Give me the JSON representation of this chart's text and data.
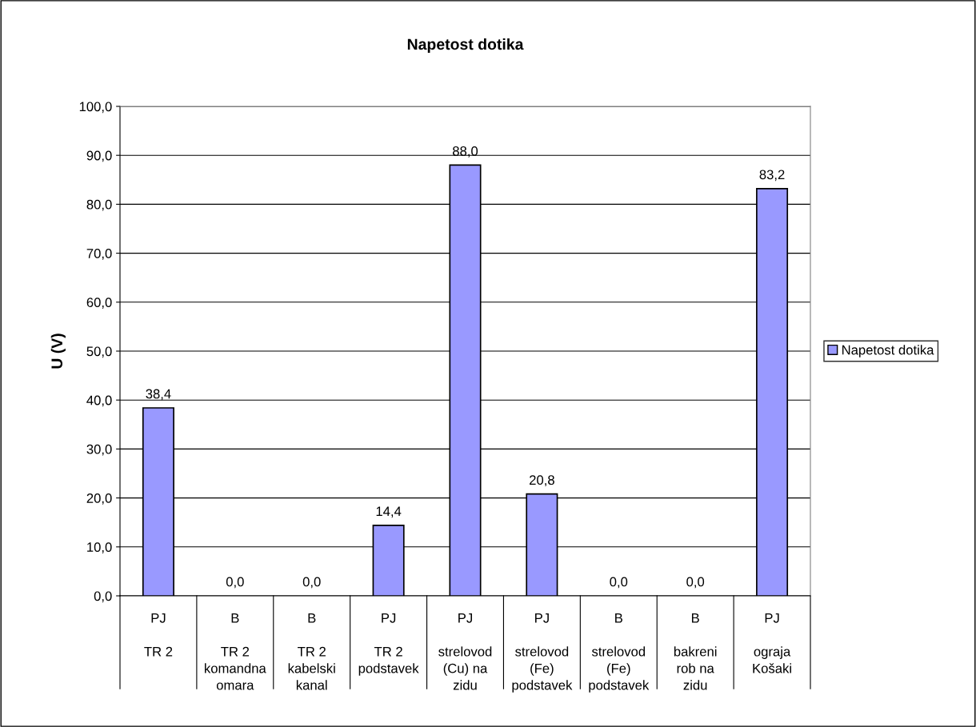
{
  "chart_data": {
    "type": "bar",
    "title": "Napetost dotika",
    "ylabel": "U (V)",
    "categories": [
      "PJ\n\nTR 2",
      "B\n\nTR 2\nkomandna\nomara",
      "B\n\nTR 2\nkabelski\nkanal",
      "PJ\n\nTR 2\npodstavek",
      "PJ\n\nstrelovod\n(Cu) na\nzidu",
      "PJ\n\nstrelovod\n(Fe)\npodstavek",
      "B\n\nstrelovod\n(Fe)\npodstavek",
      "B\n\nbakreni\nrob na\nzidu",
      "PJ\n\nograja\nKošaki"
    ],
    "series": [
      {
        "name": "Napetost dotika",
        "color": "#9999ff",
        "values": [
          38.4,
          0.0,
          0.0,
          14.4,
          88.0,
          20.8,
          0.0,
          0.0,
          83.2
        ],
        "value_labels": [
          "38,4",
          "0,0",
          "0,0",
          "14,4",
          "88,0",
          "20,8",
          "0,0",
          "0,0",
          "83,2"
        ]
      }
    ],
    "ylim": [
      0,
      100
    ],
    "yticks": [
      {
        "value": 0,
        "label": "0,0"
      },
      {
        "value": 10,
        "label": "10,0"
      },
      {
        "value": 20,
        "label": "20,0"
      },
      {
        "value": 30,
        "label": "30,0"
      },
      {
        "value": 40,
        "label": "40,0"
      },
      {
        "value": 50,
        "label": "50,0"
      },
      {
        "value": 60,
        "label": "60,0"
      },
      {
        "value": 70,
        "label": "70,0"
      },
      {
        "value": 80,
        "label": "80,0"
      },
      {
        "value": 90,
        "label": "90,0"
      },
      {
        "value": 100,
        "label": "100,0"
      }
    ],
    "grid": "y",
    "legend": "right"
  }
}
